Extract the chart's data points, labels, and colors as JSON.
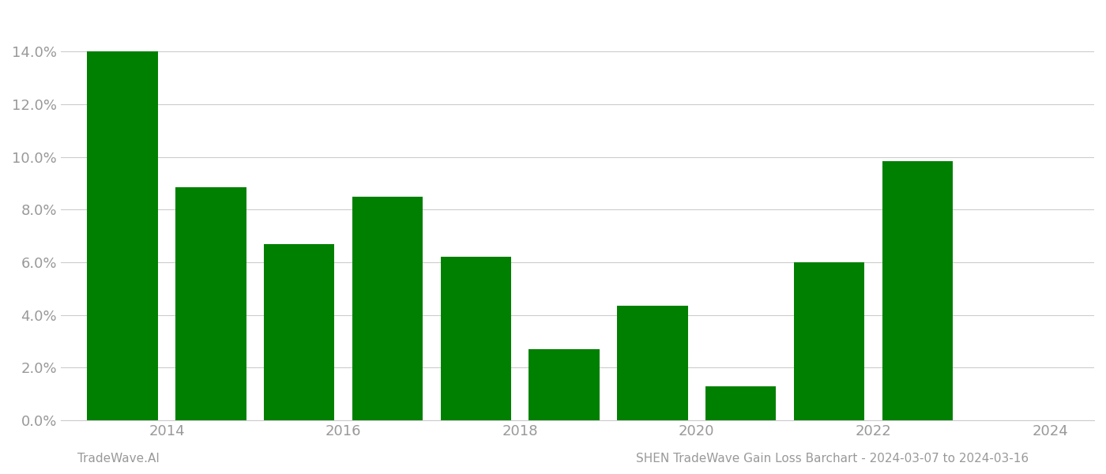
{
  "years": [
    2014,
    2015,
    2016,
    2017,
    2018,
    2019,
    2020,
    2021,
    2022,
    2023
  ],
  "values": [
    0.14,
    0.0885,
    0.067,
    0.085,
    0.062,
    0.027,
    0.0435,
    0.013,
    0.06,
    0.0985
  ],
  "bar_color": "#008000",
  "background_color": "#ffffff",
  "footer_left": "TradeWave.AI",
  "footer_right": "SHEN TradeWave Gain Loss Barchart - 2024-03-07 to 2024-03-16",
  "ylim_min": 0.0,
  "ylim_max": 0.155,
  "yticks": [
    0.0,
    0.02,
    0.04,
    0.06,
    0.08,
    0.1,
    0.12,
    0.14
  ],
  "xtick_positions": [
    2014.5,
    2016.5,
    2018.5,
    2020.5,
    2022.5,
    2024.5
  ],
  "xtick_labels": [
    "2014",
    "2016",
    "2018",
    "2020",
    "2022",
    "2024"
  ],
  "xlim_min": 2013.3,
  "xlim_max": 2025.0,
  "grid_color": "#cccccc",
  "tick_label_color": "#999999",
  "footer_color": "#999999",
  "bar_width": 0.8
}
